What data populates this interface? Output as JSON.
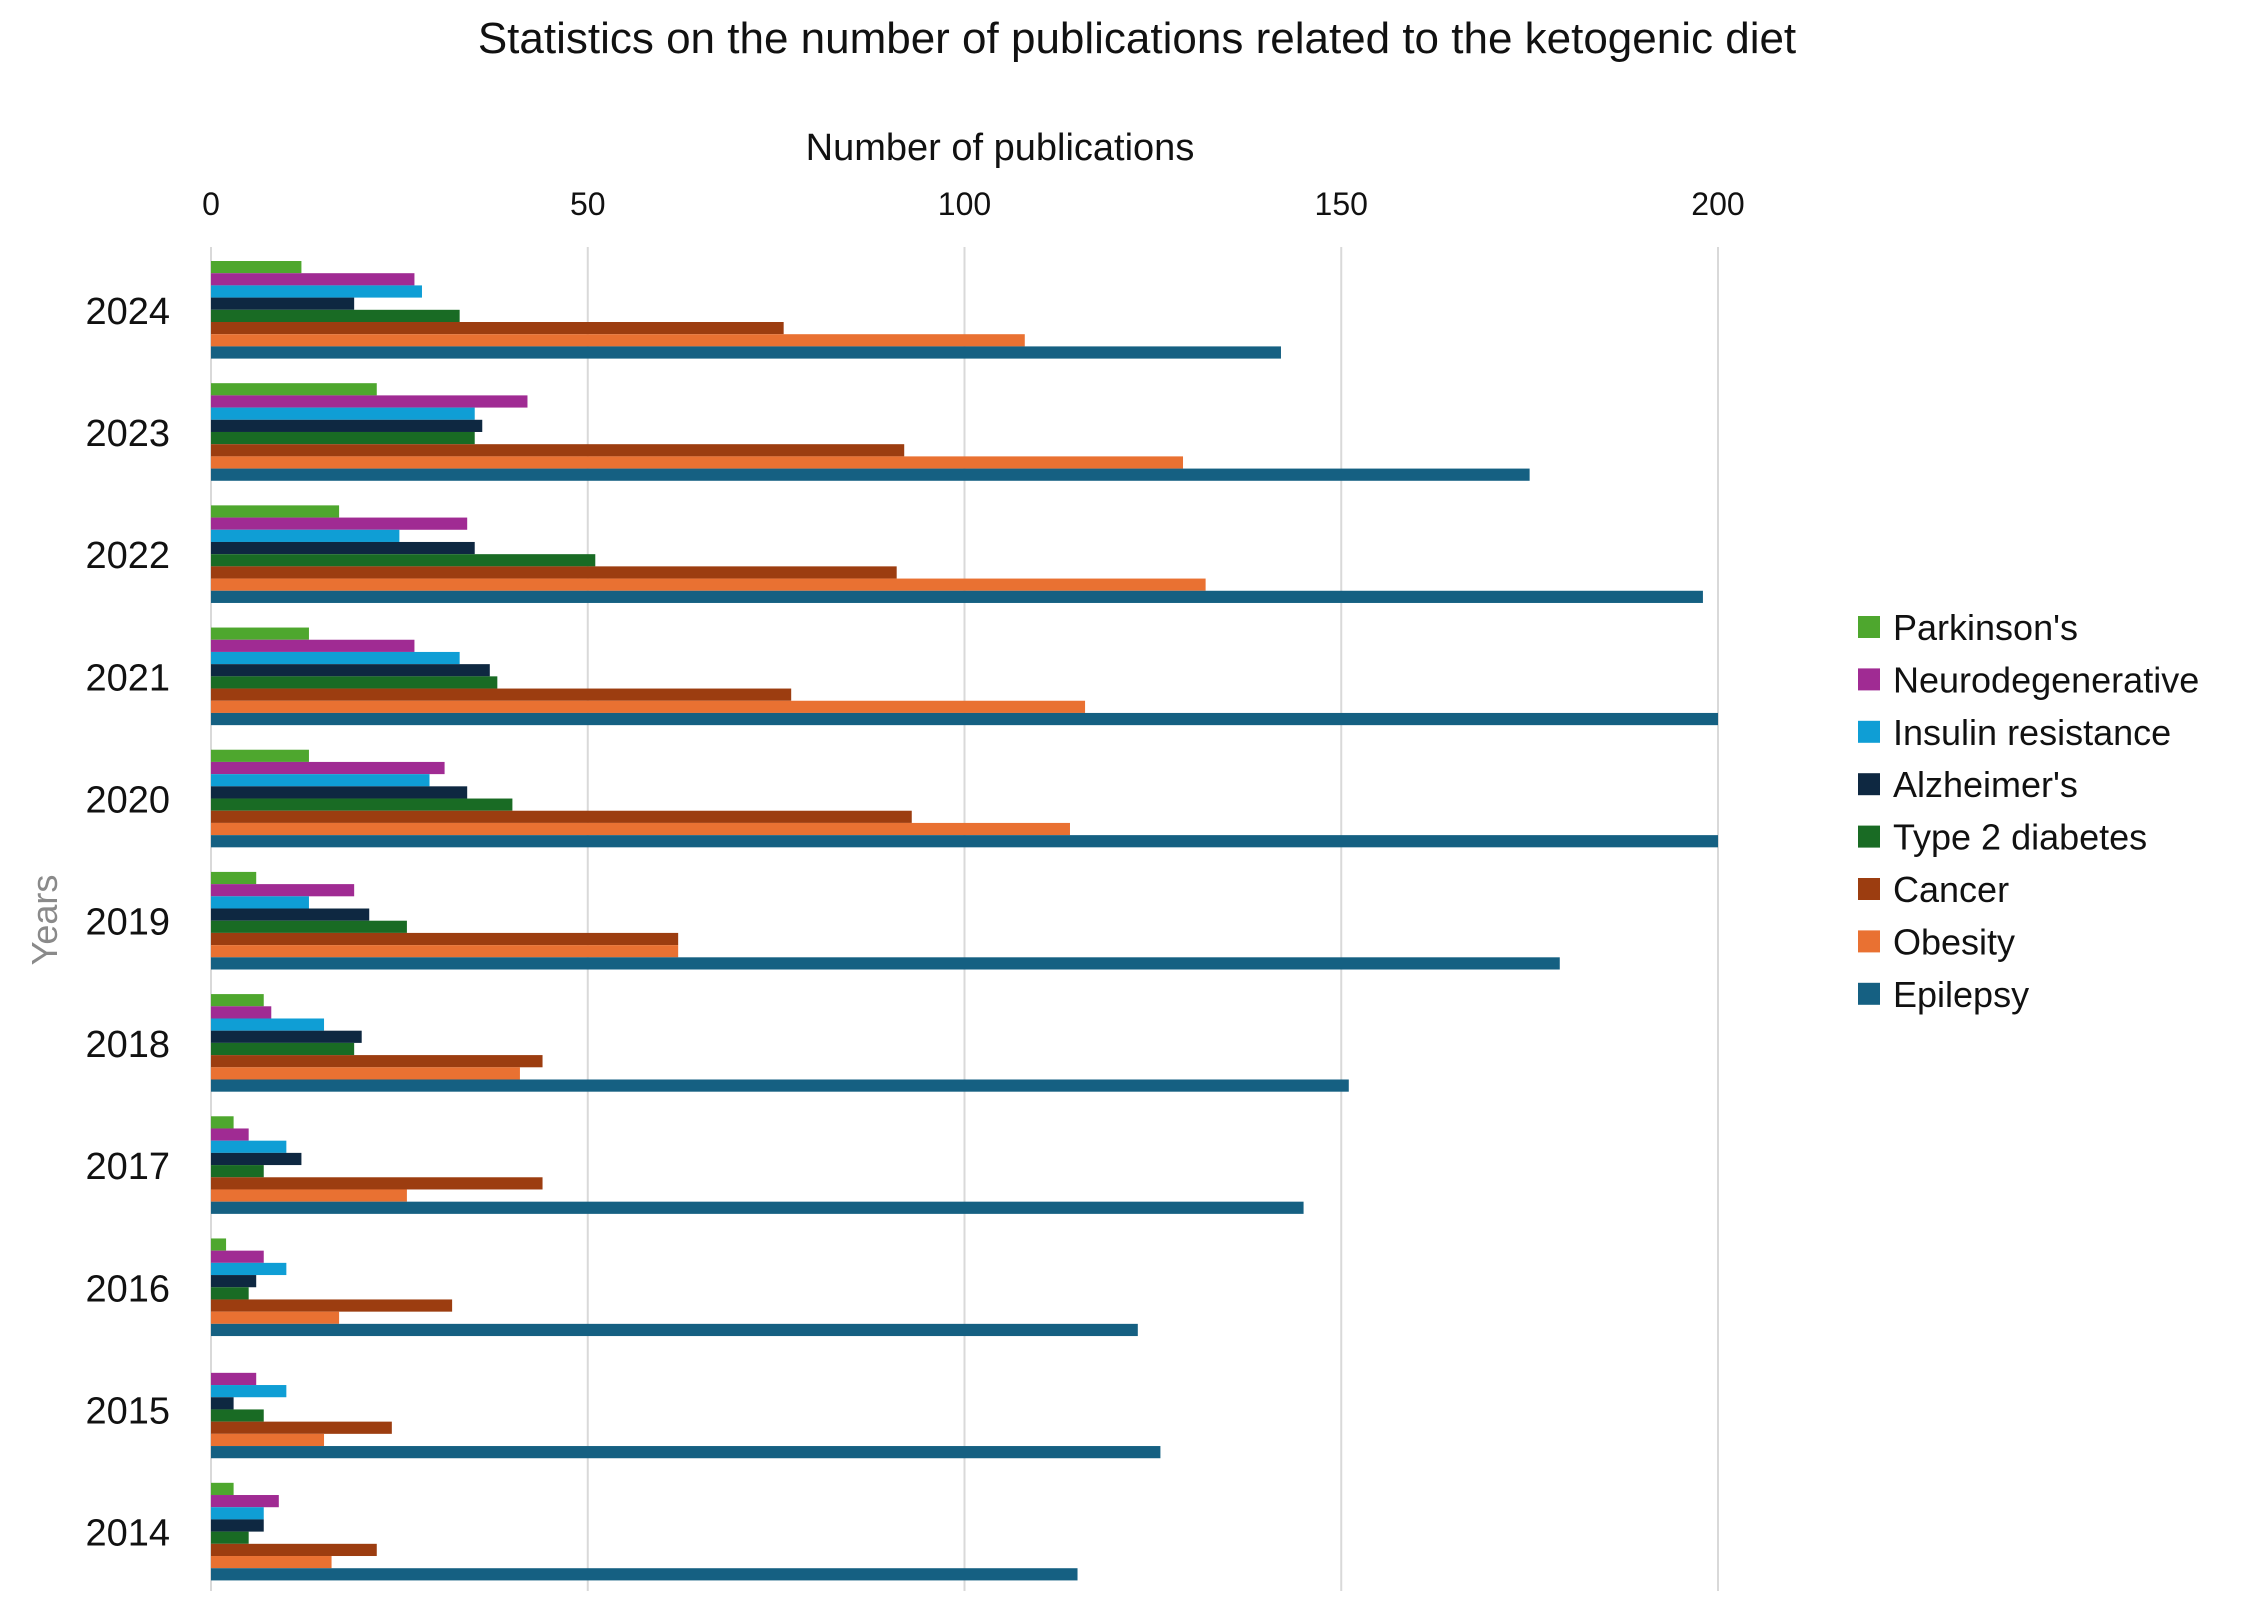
{
  "chart_data": {
    "type": "bar",
    "orientation": "horizontal",
    "title": "Statistics on the number of publications related to the ketogenic diet",
    "xlabel": "Number of publications",
    "ylabel": "Years",
    "xlim": [
      0,
      200
    ],
    "xticks": [
      0,
      50,
      100,
      150,
      200
    ],
    "grid": true,
    "legend_position": "right",
    "categories": [
      "2024",
      "2023",
      "2022",
      "2021",
      "2020",
      "2019",
      "2018",
      "2017",
      "2016",
      "2015",
      "2014"
    ],
    "series": [
      {
        "name": "Parkinson's",
        "color": "#4EA72E",
        "values": [
          12,
          22,
          17,
          13,
          13,
          6,
          7,
          3,
          2,
          0,
          3
        ]
      },
      {
        "name": "Neurodegenerative",
        "color": "#A02B93",
        "values": [
          27,
          42,
          34,
          27,
          31,
          19,
          8,
          5,
          7,
          6,
          9
        ]
      },
      {
        "name": "Insulin resistance",
        "color": "#0F9ED5",
        "values": [
          28,
          35,
          25,
          33,
          29,
          13,
          15,
          10,
          10,
          10,
          7
        ]
      },
      {
        "name": "Alzheimer's",
        "color": "#0E2841",
        "values": [
          19,
          36,
          35,
          37,
          34,
          21,
          20,
          12,
          6,
          3,
          7
        ]
      },
      {
        "name": "Type 2 diabetes",
        "color": "#196B24",
        "values": [
          33,
          35,
          51,
          38,
          40,
          26,
          19,
          7,
          5,
          7,
          5
        ]
      },
      {
        "name": "Cancer",
        "color": "#9C3D10",
        "values": [
          76,
          92,
          91,
          77,
          93,
          62,
          44,
          44,
          32,
          24,
          22
        ]
      },
      {
        "name": "Obesity",
        "color": "#E97132",
        "values": [
          108,
          129,
          132,
          116,
          114,
          62,
          41,
          26,
          17,
          15,
          16
        ]
      },
      {
        "name": "Epilepsy",
        "color": "#156082",
        "values": [
          142,
          175,
          198,
          200,
          200,
          179,
          151,
          145,
          123,
          126,
          115
        ]
      }
    ]
  }
}
